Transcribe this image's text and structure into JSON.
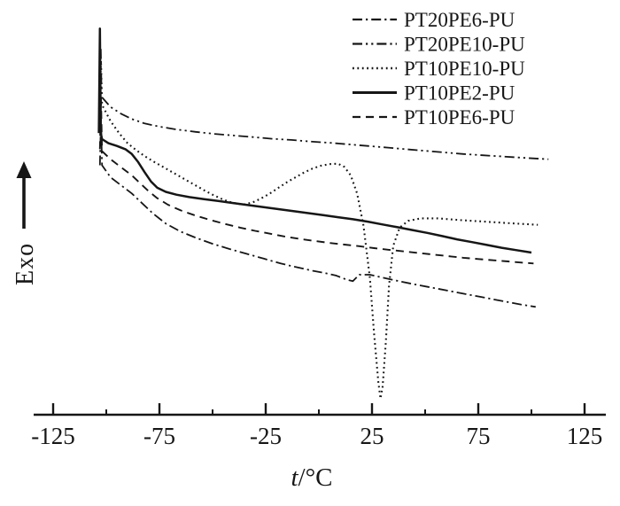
{
  "colors": {
    "line": "#161616",
    "background": "#ffffff",
    "text": "#161616"
  },
  "chart_data": {
    "type": "line",
    "title": "",
    "xlabel_italic": "t",
    "xlabel_unit": "/°C",
    "ylabel": "Exo",
    "xlim": [
      -125,
      125
    ],
    "ylim": [
      0,
      100
    ],
    "x_ticks": [
      -125,
      -75,
      -25,
      25,
      75,
      125
    ],
    "x_minor_ticks": [
      -100,
      -50,
      0,
      50,
      100
    ],
    "grid": false,
    "legend_position": "top-right",
    "y_units": "heat flow, arbitrary units (exothermic up)",
    "series": [
      {
        "name": "PT20PE6-PU",
        "style": "dashdot",
        "width": 1.8,
        "points": [
          [
            -103,
            62
          ],
          [
            -102.5,
            74
          ],
          [
            -102,
            62
          ],
          [
            -98,
            59
          ],
          [
            -93,
            57
          ],
          [
            -88,
            55
          ],
          [
            -83,
            52.5
          ],
          [
            -78,
            50
          ],
          [
            -72,
            47.5
          ],
          [
            -65,
            45.5
          ],
          [
            -58,
            44
          ],
          [
            -50,
            42.5
          ],
          [
            -42,
            41.2
          ],
          [
            -34,
            40
          ],
          [
            -26,
            38.8
          ],
          [
            -18,
            37.6
          ],
          [
            -10,
            36.6
          ],
          [
            -3,
            35.8
          ],
          [
            3,
            35.2
          ],
          [
            8,
            34.6
          ],
          [
            13,
            33.6
          ],
          [
            16,
            33.2
          ],
          [
            19,
            34.8
          ],
          [
            24,
            34.8
          ],
          [
            29,
            34.2
          ],
          [
            36,
            33.4
          ],
          [
            45,
            32.4
          ],
          [
            55,
            31.4
          ],
          [
            65,
            30.4
          ],
          [
            75,
            29.4
          ],
          [
            85,
            28.4
          ],
          [
            95,
            27.4
          ],
          [
            102,
            26.8
          ]
        ]
      },
      {
        "name": "PT20PE10-PU",
        "style": "dashdotdot",
        "width": 1.8,
        "points": [
          [
            -103,
            79
          ],
          [
            -102.6,
            91
          ],
          [
            -102.2,
            79
          ],
          [
            -98,
            76.5
          ],
          [
            -93,
            74.8
          ],
          [
            -88,
            73.5
          ],
          [
            -82,
            72.4
          ],
          [
            -75,
            71.6
          ],
          [
            -67,
            70.9
          ],
          [
            -58,
            70.3
          ],
          [
            -49,
            69.8
          ],
          [
            -40,
            69.4
          ],
          [
            -31,
            69
          ],
          [
            -22,
            68.6
          ],
          [
            -13,
            68.3
          ],
          [
            -4,
            67.9
          ],
          [
            5,
            67.6
          ],
          [
            14,
            67.2
          ],
          [
            23,
            66.8
          ],
          [
            32,
            66.4
          ],
          [
            41,
            66
          ],
          [
            50,
            65.6
          ],
          [
            59,
            65.2
          ],
          [
            68,
            64.8
          ],
          [
            77,
            64.5
          ],
          [
            86,
            64.2
          ],
          [
            95,
            63.9
          ],
          [
            108,
            63.5
          ]
        ]
      },
      {
        "name": "PT10PE10-PU",
        "style": "dotted",
        "width": 2.1,
        "points": [
          [
            -103,
            78
          ],
          [
            -102.5,
            88
          ],
          [
            -102,
            77
          ],
          [
            -98,
            73
          ],
          [
            -94,
            70
          ],
          [
            -90,
            67.5
          ],
          [
            -86,
            65.8
          ],
          [
            -82,
            64.3
          ],
          [
            -78,
            63
          ],
          [
            -74,
            61.8
          ],
          [
            -70,
            60.6
          ],
          [
            -66,
            59.4
          ],
          [
            -62,
            58.2
          ],
          [
            -58,
            57
          ],
          [
            -54,
            55.8
          ],
          [
            -50,
            54.7
          ],
          [
            -46,
            53.7
          ],
          [
            -42,
            52.9
          ],
          [
            -38,
            52.4
          ],
          [
            -35,
            52.3
          ],
          [
            -31,
            52.8
          ],
          [
            -27,
            53.8
          ],
          [
            -23,
            55
          ],
          [
            -19,
            56.4
          ],
          [
            -15,
            57.8
          ],
          [
            -11,
            59
          ],
          [
            -7,
            60.2
          ],
          [
            -3,
            61.2
          ],
          [
            1,
            61.9
          ],
          [
            5,
            62.3
          ],
          [
            9,
            62.4
          ],
          [
            12,
            61.6
          ],
          [
            15,
            59.5
          ],
          [
            18,
            55
          ],
          [
            21,
            47
          ],
          [
            24,
            34
          ],
          [
            26,
            20
          ],
          [
            28,
            8
          ],
          [
            29,
            4
          ],
          [
            30,
            7
          ],
          [
            31.5,
            18
          ],
          [
            33,
            32
          ],
          [
            35,
            42
          ],
          [
            38,
            46.5
          ],
          [
            42,
            48.2
          ],
          [
            48,
            48.8
          ],
          [
            56,
            48.8
          ],
          [
            66,
            48.4
          ],
          [
            78,
            48
          ],
          [
            90,
            47.6
          ],
          [
            103,
            47.2
          ]
        ]
      },
      {
        "name": "PT10PE2-PU",
        "style": "solid",
        "width": 2.5,
        "points": [
          [
            -103.5,
            70
          ],
          [
            -103,
            96
          ],
          [
            -102.6,
            70
          ],
          [
            -102,
            68.5
          ],
          [
            -99,
            67.5
          ],
          [
            -95,
            66.8
          ],
          [
            -91,
            66
          ],
          [
            -88,
            64.8
          ],
          [
            -85,
            62.8
          ],
          [
            -82,
            60.3
          ],
          [
            -79,
            58
          ],
          [
            -76,
            56.4
          ],
          [
            -72,
            55.4
          ],
          [
            -67,
            54.7
          ],
          [
            -61,
            54.1
          ],
          [
            -54,
            53.6
          ],
          [
            -47,
            53.1
          ],
          [
            -40,
            52.6
          ],
          [
            -33,
            52.1
          ],
          [
            -26,
            51.6
          ],
          [
            -19,
            51.1
          ],
          [
            -12,
            50.6
          ],
          [
            -5,
            50.1
          ],
          [
            2,
            49.6
          ],
          [
            9,
            49.1
          ],
          [
            16,
            48.6
          ],
          [
            23,
            48
          ],
          [
            30,
            47.3
          ],
          [
            37,
            46.6
          ],
          [
            44,
            45.9
          ],
          [
            51,
            45.2
          ],
          [
            58,
            44.4
          ],
          [
            65,
            43.6
          ],
          [
            72,
            42.9
          ],
          [
            79,
            42.2
          ],
          [
            86,
            41.5
          ],
          [
            93,
            40.9
          ],
          [
            100,
            40.3
          ]
        ]
      },
      {
        "name": "PT10PE6-PU",
        "style": "dashed",
        "width": 1.9,
        "points": [
          [
            -103,
            66
          ],
          [
            -102.5,
            79
          ],
          [
            -102,
            65.5
          ],
          [
            -98,
            63.5
          ],
          [
            -93,
            61.5
          ],
          [
            -88,
            59.5
          ],
          [
            -84,
            57.5
          ],
          [
            -80,
            55.5
          ],
          [
            -76,
            53.8
          ],
          [
            -71,
            52.2
          ],
          [
            -65,
            50.8
          ],
          [
            -58,
            49.5
          ],
          [
            -51,
            48.4
          ],
          [
            -44,
            47.4
          ],
          [
            -37,
            46.5
          ],
          [
            -30,
            45.7
          ],
          [
            -23,
            45
          ],
          [
            -16,
            44.3
          ],
          [
            -9,
            43.7
          ],
          [
            -2,
            43.2
          ],
          [
            5,
            42.7
          ],
          [
            12,
            42.3
          ],
          [
            19,
            41.9
          ],
          [
            26,
            41.4
          ],
          [
            33,
            41
          ],
          [
            40,
            40.6
          ],
          [
            47,
            40.2
          ],
          [
            54,
            39.8
          ],
          [
            61,
            39.4
          ],
          [
            68,
            39
          ],
          [
            75,
            38.7
          ],
          [
            82,
            38.4
          ],
          [
            89,
            38.1
          ],
          [
            96,
            37.8
          ],
          [
            101,
            37.6
          ]
        ]
      }
    ]
  }
}
